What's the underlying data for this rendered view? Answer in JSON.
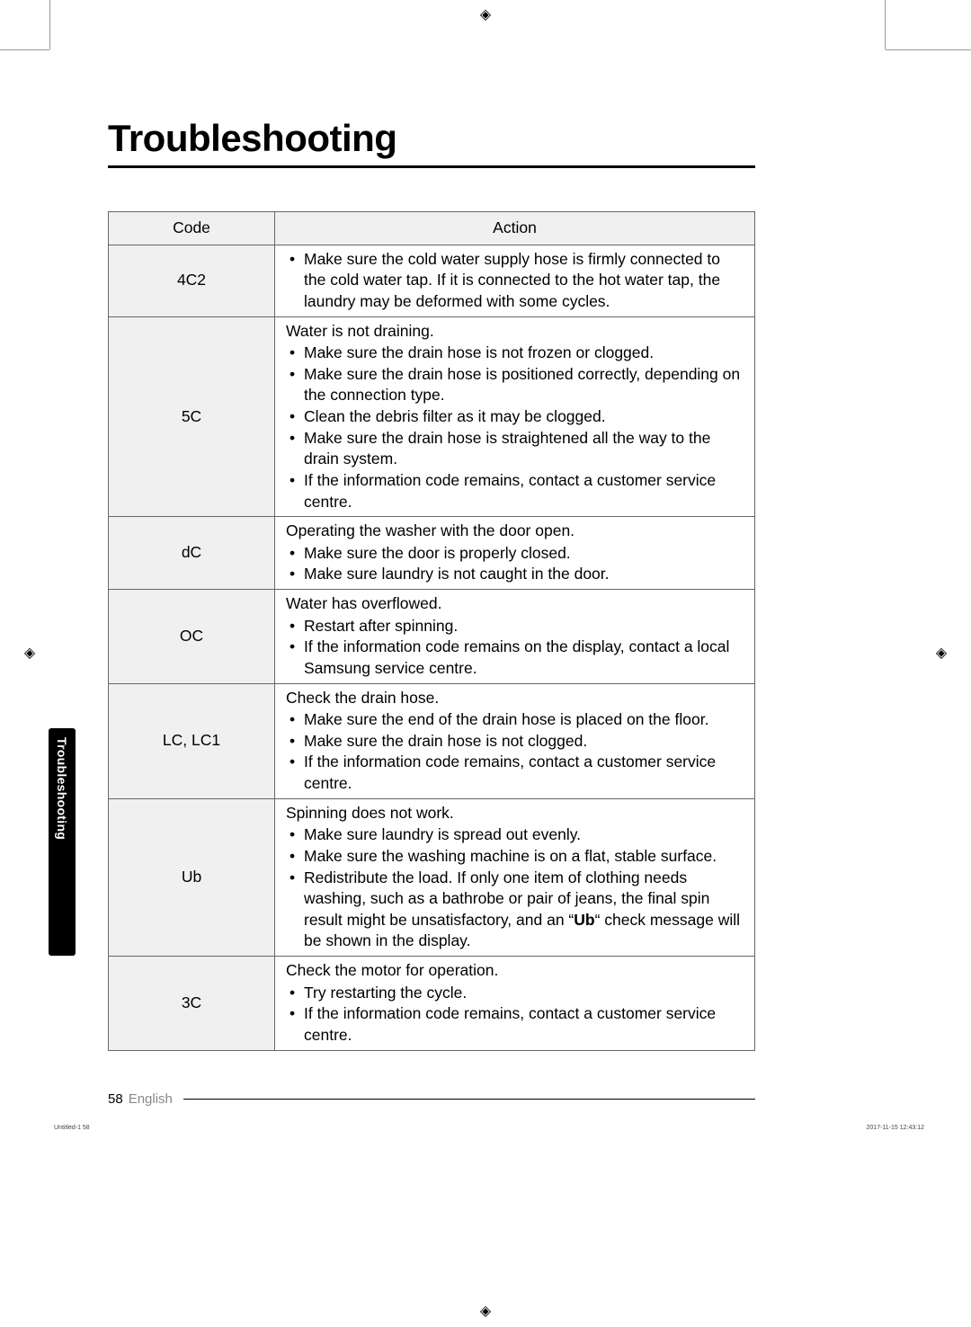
{
  "title": "Troubleshooting",
  "side_tab": "Troubleshooting",
  "headers": {
    "code": "Code",
    "action": "Action"
  },
  "rows": [
    {
      "code": "4C2",
      "intro": "",
      "items": [
        "Make sure the cold water supply hose is firmly connected to the cold water tap. If it is connected to the hot water tap, the laundry may be deformed with some cycles."
      ]
    },
    {
      "code": "5C",
      "intro": "Water is not draining.",
      "items": [
        "Make sure the drain hose is not frozen or clogged.",
        "Make sure the drain hose is positioned correctly, depending on the connection type.",
        "Clean the debris filter as it may be clogged.",
        "Make sure the drain hose is straightened all the way to the drain system.",
        "If the information code remains, contact a customer service centre."
      ]
    },
    {
      "code": "dC",
      "intro": "Operating the washer with the door open.",
      "items": [
        "Make sure the door is properly closed.",
        "Make sure laundry is not caught in the door."
      ]
    },
    {
      "code": "OC",
      "intro": "Water has overflowed.",
      "items": [
        "Restart after spinning.",
        "If the information code remains on the display, contact a local Samsung service centre."
      ]
    },
    {
      "code": "LC, LC1",
      "intro": "Check the drain hose.",
      "items": [
        "Make sure the end of the drain hose is placed on the floor.",
        "Make sure the drain hose is not clogged.",
        "If the information code remains, contact a customer service centre."
      ]
    },
    {
      "code": "Ub",
      "intro": "Spinning does not work.",
      "items": [
        "Make sure laundry is spread out evenly.",
        "Make sure the washing machine is on a flat, stable surface.",
        "Redistribute the load. If only one item of clothing needs washing, such as a bathrobe or pair of jeans, the final spin result might be unsatisfactory, and an \"<b>Ub</b>\" check message will be shown in the display."
      ]
    },
    {
      "code": "3C",
      "intro": "Check the motor for operation.",
      "items": [
        "Try restarting the cycle.",
        "If the information code remains, contact a customer service centre."
      ]
    }
  ],
  "footer": {
    "page": "58",
    "lang": "English"
  },
  "micro": {
    "left": "Untitled-1   58",
    "right": "2017-11-15   12:43:12"
  },
  "colors": {
    "header_bg": "#f0f0f0",
    "border": "#666666",
    "text": "#000000",
    "side_tab_bg": "#000000",
    "side_tab_text": "#ffffff"
  },
  "typography": {
    "title_fontsize": 42,
    "body_fontsize": 17.5,
    "side_tab_fontsize": 14
  }
}
